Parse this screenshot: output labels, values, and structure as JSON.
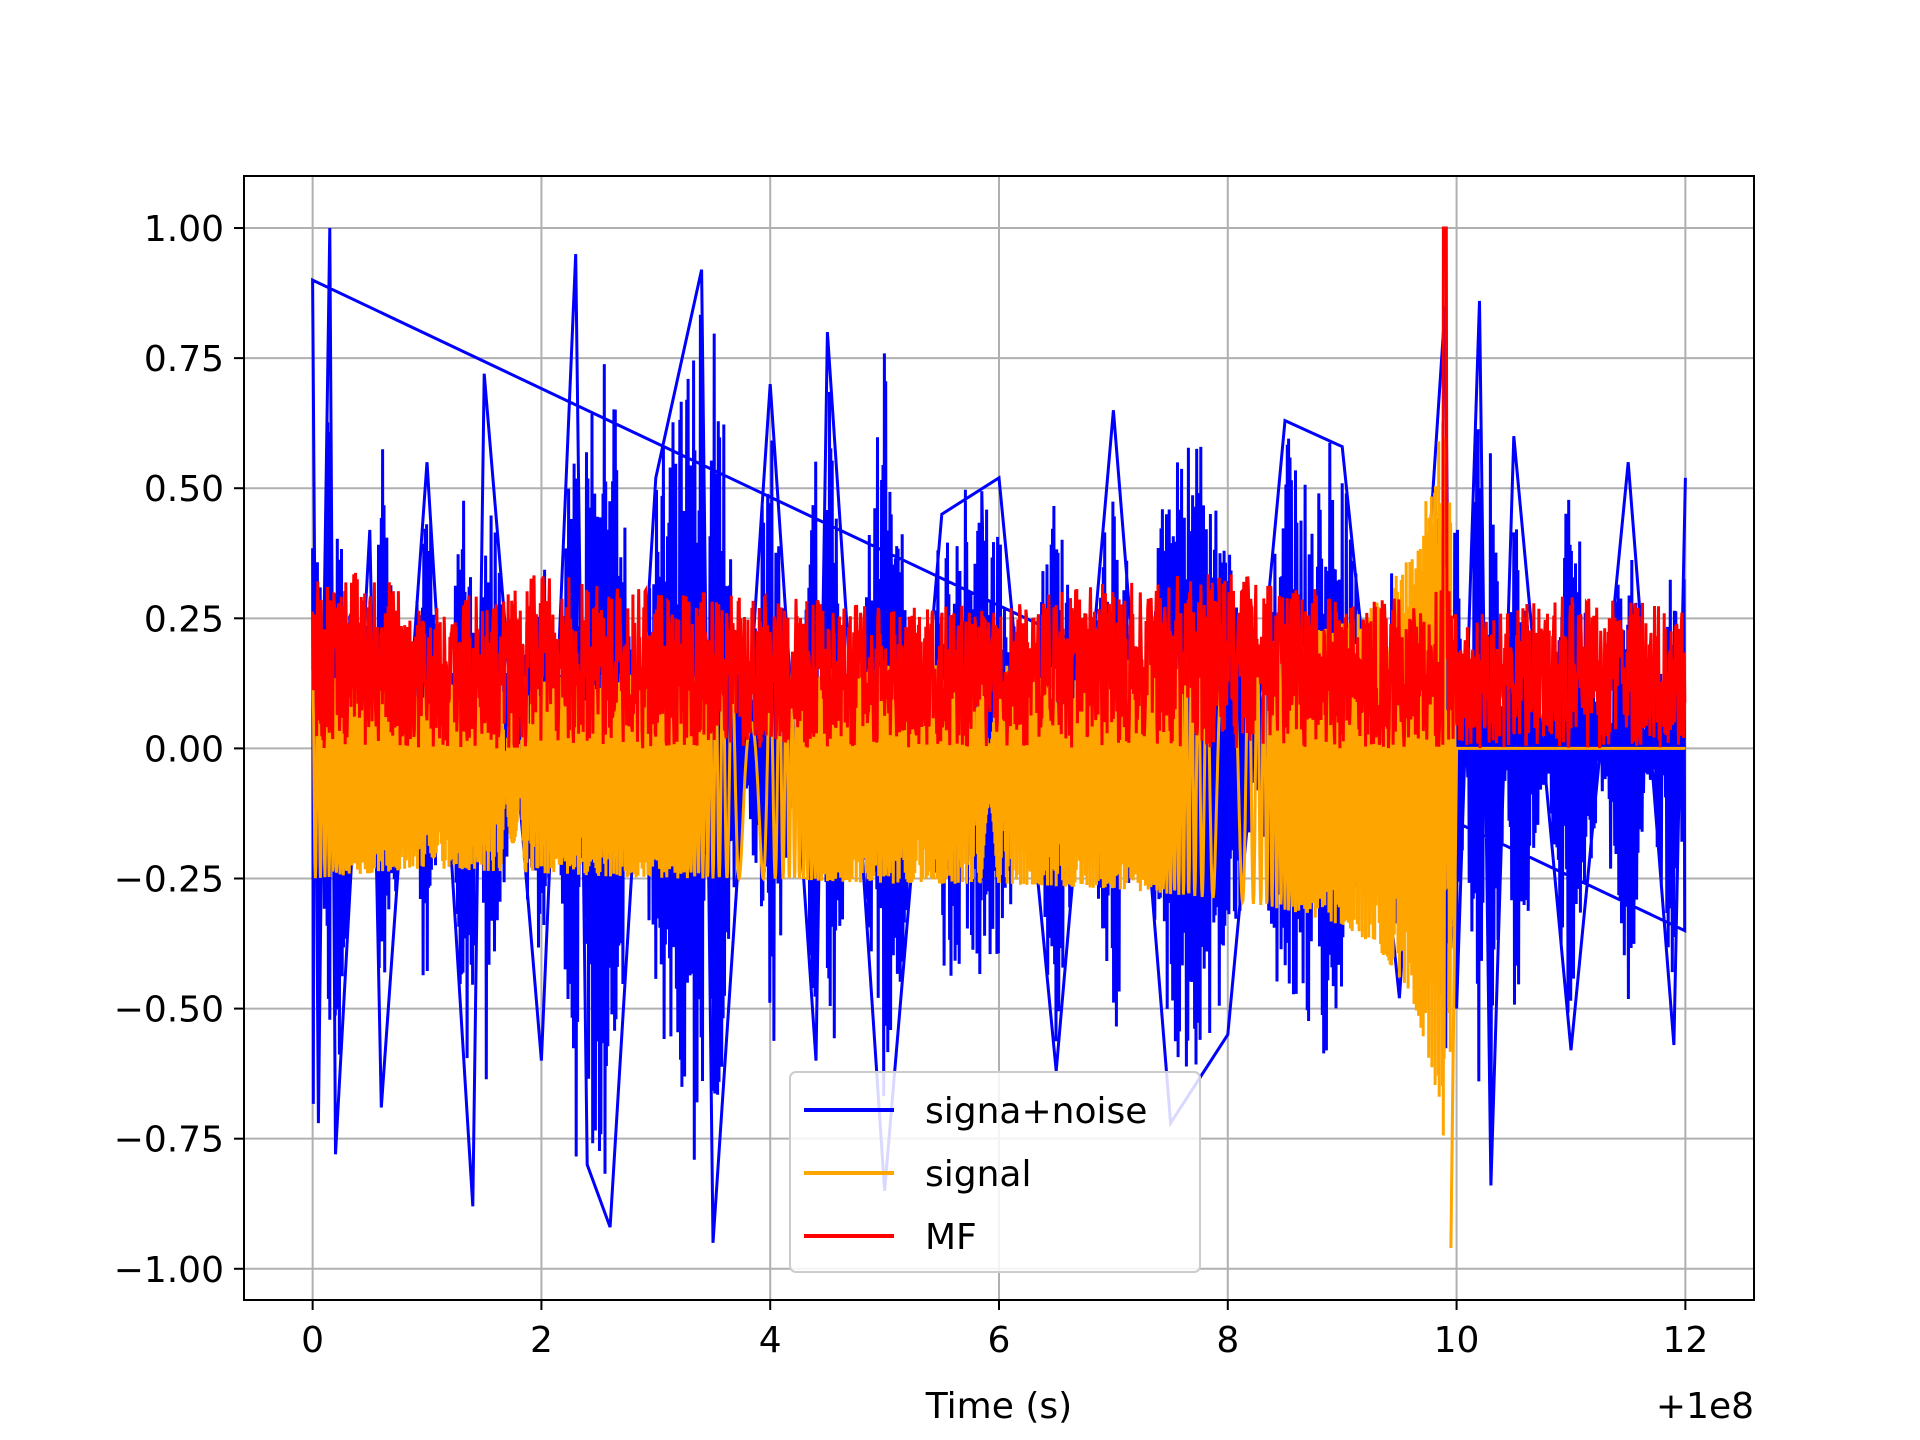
{
  "chart_data": {
    "type": "line",
    "title": "",
    "xlabel": "Time (s)",
    "ylabel": "",
    "x_offset_label": "+1e8",
    "xlim": [
      -0.6,
      12.6
    ],
    "ylim": [
      -1.06,
      1.1
    ],
    "x_ticks": [
      0,
      2,
      4,
      6,
      8,
      10,
      12
    ],
    "x_tick_labels": [
      "0",
      "2",
      "4",
      "6",
      "8",
      "10",
      "12"
    ],
    "y_ticks": [
      1.0,
      0.75,
      0.5,
      0.25,
      0.0,
      -0.25,
      -0.5,
      -0.75,
      -1.0
    ],
    "y_tick_labels": [
      "1.00",
      "0.75",
      "0.50",
      "0.25",
      "0.00",
      "−0.25",
      "−0.50",
      "−0.75",
      "−1.00"
    ],
    "grid": true,
    "legend_position": "lower-center",
    "series": [
      {
        "name": "signa+noise",
        "color": "#0000ff",
        "x": [
          0.0,
          0.05,
          0.1,
          0.15,
          0.2,
          0.5,
          0.6,
          1.0,
          1.4,
          1.5,
          2.0,
          2.3,
          2.4,
          2.6,
          3.0,
          3.4,
          3.5,
          4.0,
          4.4,
          4.5,
          5.0,
          5.5,
          6.0,
          6.5,
          7.0,
          7.5,
          8.0,
          8.5,
          9.0,
          9.5,
          9.9,
          9.95,
          10.0,
          10.2,
          10.3,
          10.5,
          11.0,
          11.5,
          11.9,
          12.0
        ],
        "values": [
          0.9,
          -0.72,
          0.25,
          1.0,
          -0.78,
          0.42,
          -0.69,
          0.55,
          -0.88,
          0.72,
          -0.6,
          0.95,
          -0.8,
          -0.92,
          0.52,
          0.92,
          -0.95,
          0.7,
          -0.6,
          0.8,
          -0.85,
          0.45,
          0.52,
          -0.62,
          0.65,
          -0.72,
          -0.55,
          0.63,
          0.58,
          -0.48,
          0.85,
          -0.2,
          -0.5,
          0.86,
          -0.84,
          0.6,
          -0.58,
          0.55,
          -0.57,
          0.52
        ]
      },
      {
        "name": "signal",
        "color": "#ffa500",
        "x": [
          0.0,
          1.0,
          2.0,
          3.0,
          4.0,
          5.0,
          6.0,
          7.0,
          8.0,
          8.5,
          9.0,
          9.3,
          9.6,
          9.8,
          9.9,
          9.95,
          10.0,
          12.0
        ],
        "values": [
          0.2,
          0.18,
          0.19,
          0.2,
          0.2,
          0.21,
          0.21,
          0.22,
          0.24,
          0.26,
          0.29,
          0.33,
          0.42,
          0.58,
          0.72,
          -0.96,
          0.0,
          0.0
        ]
      },
      {
        "name": "MF",
        "color": "#ff0000",
        "x": [
          0.0,
          0.03,
          0.06,
          1.0,
          2.0,
          3.0,
          4.0,
          5.0,
          6.0,
          7.0,
          8.0,
          9.0,
          9.8,
          9.9,
          9.95,
          10.0,
          11.0,
          12.0
        ],
        "values": [
          0.58,
          0.3,
          0.42,
          0.27,
          0.34,
          0.3,
          0.3,
          0.27,
          0.28,
          0.32,
          0.34,
          0.3,
          0.28,
          1.0,
          0.33,
          0.25,
          0.3,
          0.27
        ]
      }
    ]
  }
}
